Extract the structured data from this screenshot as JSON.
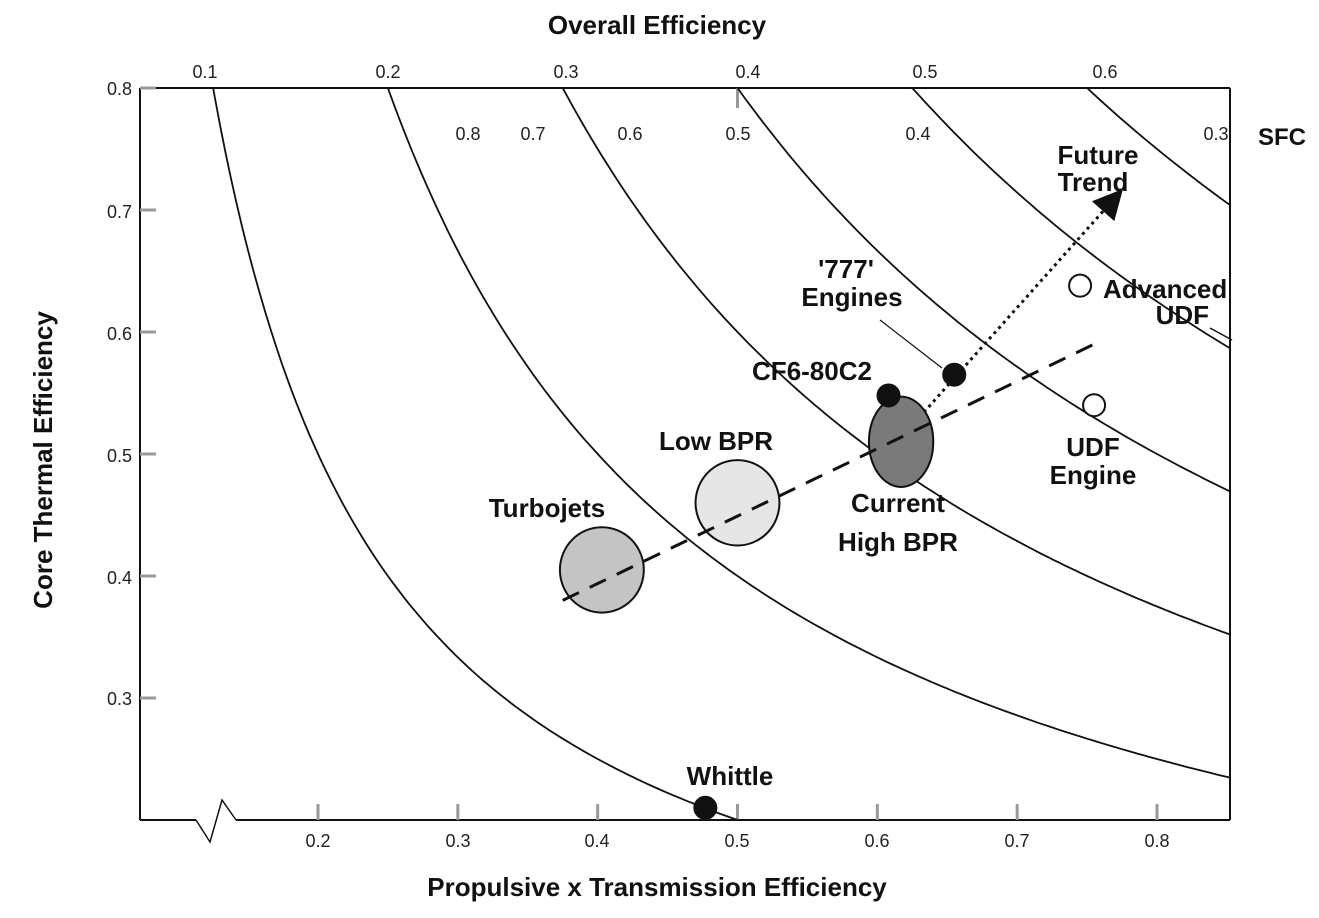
{
  "chart_data": {
    "type": "scatter",
    "title": "Overall Efficiency",
    "xlabel": "Propulsive x Transmission Efficiency",
    "ylabel": "Core Thermal Efficiency",
    "x_ticks": [
      "0.2",
      "0.3",
      "0.4",
      "0.5",
      "0.6",
      "0.7",
      "0.8"
    ],
    "y_ticks": [
      "0.8",
      "0.7",
      "0.6",
      "0.5",
      "0.4",
      "0.3"
    ],
    "top_ticks": [
      "0.1",
      "0.2",
      "0.3",
      "0.4",
      "0.5",
      "0.6"
    ],
    "sfc_ticks": [
      "0.8",
      "0.7",
      "0.6",
      "0.5",
      "0.4",
      "0.3"
    ],
    "sfc_label": "SFC",
    "xlim": [
      0.07,
      0.85
    ],
    "ylim": [
      0.2,
      0.8
    ],
    "overall_efficiency_curves": [
      0.1,
      0.2,
      0.3,
      0.4,
      0.5,
      0.6
    ],
    "points": [
      {
        "name": "Whittle",
        "label": "Whittle",
        "x": 0.477,
        "y": 0.21,
        "marker": "filled"
      },
      {
        "name": "CF6-80C2",
        "label": "CF6-80C2",
        "x": 0.608,
        "y": 0.548,
        "marker": "filled"
      },
      {
        "name": "777-engines",
        "label_lines": [
          "'777'",
          "Engines"
        ],
        "x": 0.655,
        "y": 0.565,
        "marker": "filled"
      },
      {
        "name": "udf-engine",
        "label_lines": [
          "UDF",
          "Engine"
        ],
        "x": 0.755,
        "y": 0.54,
        "marker": "open"
      },
      {
        "name": "advanced-udf",
        "label_lines": [
          "Advanced",
          "UDF"
        ],
        "x": 0.745,
        "y": 0.638,
        "marker": "open"
      }
    ],
    "regions": [
      {
        "name": "turbojets",
        "label": "Turbojets",
        "x": 0.403,
        "y": 0.405,
        "rx": 0.03,
        "ry": 0.035,
        "fill": "#c4c4c4"
      },
      {
        "name": "low-bpr",
        "label": "Low BPR",
        "x": 0.5,
        "y": 0.46,
        "rx": 0.03,
        "ry": 0.035,
        "fill": "#e6e6e6"
      },
      {
        "name": "current-high-bpr",
        "label_lines": [
          "Current",
          "High BPR"
        ],
        "x": 0.617,
        "y": 0.51,
        "rx": 0.023,
        "ry": 0.037,
        "fill": "#7a7a7a"
      }
    ],
    "trend_dashed": {
      "from": [
        0.375,
        0.38
      ],
      "to": [
        0.755,
        0.59
      ]
    },
    "future_trend": {
      "label_lines": [
        "Future",
        "Trend"
      ],
      "from": [
        0.63,
        0.53
      ],
      "to": [
        0.77,
        0.71
      ]
    },
    "colors": {
      "axis": "#111111",
      "curve": "#111111",
      "turbojets": "#c4c4c4",
      "low_bpr": "#e6e6e6",
      "high_bpr": "#7a7a7a"
    }
  }
}
